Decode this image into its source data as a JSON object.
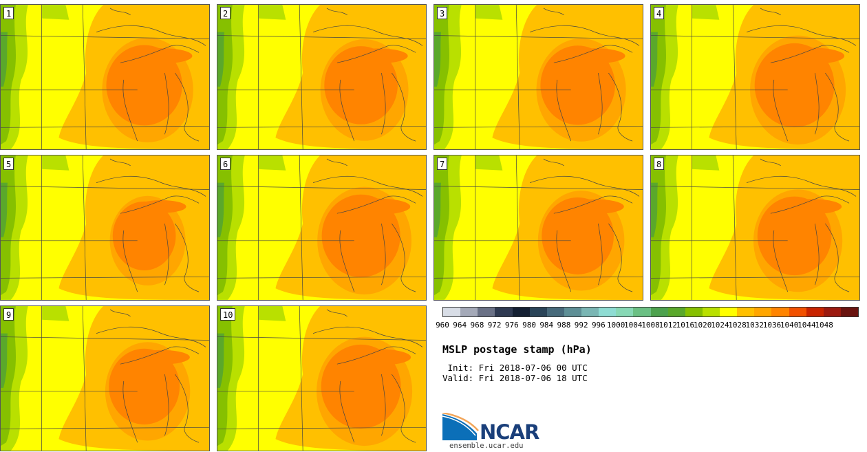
{
  "panels": [
    {
      "label": "1",
      "intensity": 0.85
    },
    {
      "label": "2",
      "intensity": 0.75
    },
    {
      "label": "3",
      "intensity": 0.8
    },
    {
      "label": "4",
      "intensity": 1.0
    },
    {
      "label": "5",
      "intensity": 0.35
    },
    {
      "label": "6",
      "intensity": 0.95
    },
    {
      "label": "7",
      "intensity": 0.7
    },
    {
      "label": "8",
      "intensity": 0.78
    },
    {
      "label": "9",
      "intensity": 0.65
    },
    {
      "label": "10",
      "intensity": 1.0
    }
  ],
  "colorbar": {
    "colors": [
      "#d8dde6",
      "#a4a9b8",
      "#6a7186",
      "#2f3a52",
      "#142033",
      "#2a4458",
      "#476a7b",
      "#5e8f96",
      "#7ab6b4",
      "#8edcd3",
      "#87d8b5",
      "#6bc084",
      "#4da24e",
      "#5aa82b",
      "#86c000",
      "#b9e000",
      "#ffff00",
      "#ffc000",
      "#ffa600",
      "#ff8400",
      "#f25100",
      "#c92400",
      "#9c1a10",
      "#6a1410"
    ],
    "ticks": [
      "960",
      "964",
      "968",
      "972",
      "976",
      "980",
      "984",
      "988",
      "992",
      "996",
      "1000",
      "1004",
      "1008",
      "1012",
      "1016",
      "1020",
      "1024",
      "1028",
      "1032",
      "1036",
      "1040",
      "1044",
      "1048"
    ]
  },
  "title": "MSLP postage stamp (hPa)",
  "init": " Init: Fri 2018-07-06 00 UTC",
  "valid": "Valid: Fri 2018-07-06 18 UTC",
  "logo": {
    "text": "NCAR",
    "site": "ensemble.ucar.edu"
  }
}
